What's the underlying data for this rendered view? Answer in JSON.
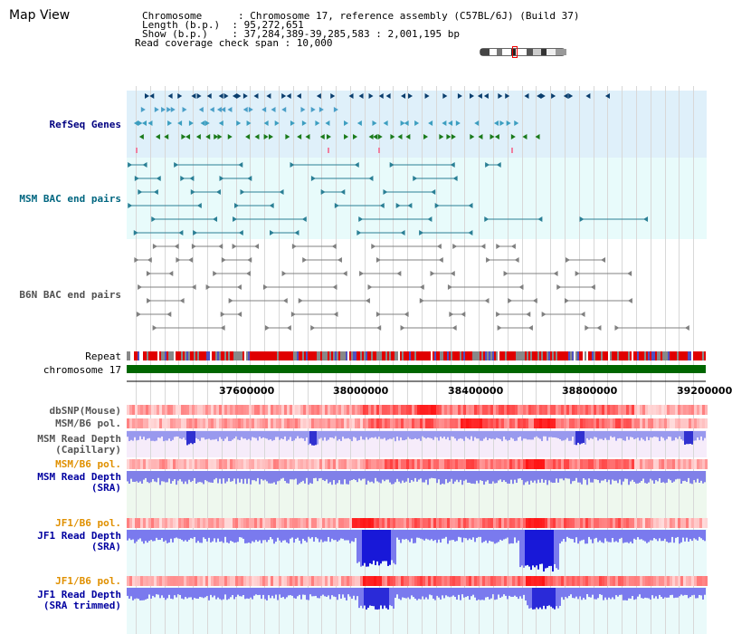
{
  "title": "Map View",
  "info": {
    "line1": "Chromosome      : Chromosome 17, reference assembly (C57BL/6J) (Build 37)",
    "line2": "Length (b.p.)  : 95,272,651",
    "line3": "Show (b.p.)    : 37,284,389-39,285,583 : 2,001,195 bp",
    "line4": "Read coverage check span : 10,000"
  },
  "tracks": {
    "refseq": "RefSeq Genes",
    "msm_bac": "MSM BAC end pairs",
    "b6n_bac": "B6N BAC end pairs",
    "repeat": "Repeat",
    "chromosome": "chromosome 17",
    "dbsnp": "dbSNP(Mouse)",
    "msm_b6_pol_1": "MSM/B6 pol.",
    "msm_depth_cap_1": "MSM Read Depth",
    "msm_depth_cap_2": "(Capillary)",
    "msm_b6_pol_2": "MSM/B6 pol.",
    "msm_depth_sra_1": "MSM Read Depth",
    "msm_depth_sra_2": "(SRA)",
    "jf1_b6_pol_1": "JF1/B6 pol.",
    "jf1_depth_sra_1": "JF1 Read Depth",
    "jf1_depth_sra_2": "(SRA)",
    "jf1_b6_pol_2": "JF1/B6 pol.",
    "jf1_depth_trim_1": "JF1 Read Depth",
    "jf1_depth_trim_2": "(SRA trimmed)"
  },
  "axis": {
    "ticks": [
      "37600000",
      "38000000",
      "38400000",
      "38800000",
      "39200000"
    ]
  },
  "colors": {
    "refseq_bg": "#dff0fa",
    "bac_bg": "#e8fbfb",
    "refseq_label": "#000080",
    "msm_label": "#006680",
    "b6n_label": "#505050",
    "pol_label": "#e09000",
    "depth_label": "#0000a0",
    "chromosome": "#006600",
    "repeat_red": "#e00000"
  }
}
